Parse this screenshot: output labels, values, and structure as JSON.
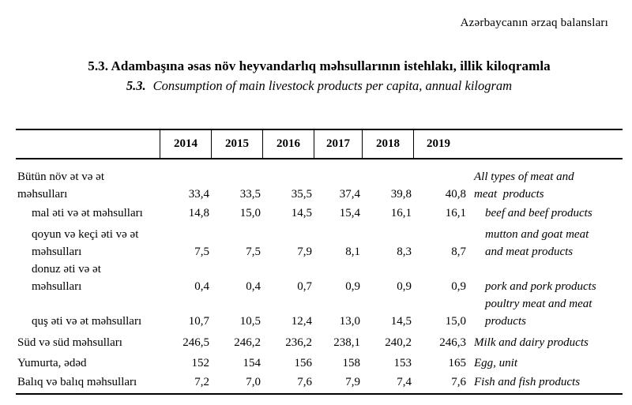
{
  "page": {
    "header_right": "Azərbaycanın ərzaq balansları",
    "title_az": "5.3. Adambaşına əsas növ heyvandarlıq məhsullarının istehlakı, illik kiloqramla",
    "subtitle_number": "5.3.",
    "subtitle_text": "Consumption of main livestock products per capita, annual kilogram"
  },
  "table": {
    "years": [
      "2014",
      "2015",
      "2016",
      "2017",
      "2018",
      "2019"
    ],
    "rows": [
      {
        "label_az_lines": [
          "Bütün növ ət və ət",
          "məhsulları"
        ],
        "values": [
          "33,4",
          "33,5",
          "35,5",
          "37,4",
          "39,8",
          "40,8"
        ],
        "label_en_lines": [
          "All types of meat and",
          "meat  products"
        ],
        "indent": false,
        "gap": "none"
      },
      {
        "label_az_lines": [
          "mal əti və ət məhsulları"
        ],
        "values": [
          "14,8",
          "15,0",
          "14,5",
          "15,4",
          "16,1",
          "16,1"
        ],
        "label_en_lines": [
          "beef and beef products"
        ],
        "indent": true,
        "gap": "small"
      },
      {
        "label_az_lines": [
          "qoyun və keçi əti və ət",
          "məhsulları"
        ],
        "values": [
          "7,5",
          "7,5",
          "7,9",
          "8,1",
          "8,3",
          "8,7"
        ],
        "label_en_lines": [
          "mutton and goat meat",
          "and meat products"
        ],
        "indent": true,
        "gap": "medium"
      },
      {
        "label_az_lines": [
          "donuz əti və ət",
          "məhsulları"
        ],
        "values": [
          "0,4",
          "0,4",
          "0,7",
          "0,9",
          "0,9",
          "0,9"
        ],
        "label_en_lines": [
          "pork and pork products"
        ],
        "indent": true,
        "gap": "none"
      },
      {
        "label_az_lines": [
          "quş əti və ət məhsulları"
        ],
        "values": [
          "10,7",
          "10,5",
          "12,4",
          "13,0",
          "14,5",
          "15,0"
        ],
        "label_en_lines": [
          "poultry meat and meat",
          "products"
        ],
        "indent": true,
        "gap": "none"
      },
      {
        "label_az_lines": [
          "Süd və süd məhsulları"
        ],
        "values": [
          "246,5",
          "246,2",
          "236,2",
          "238,1",
          "240,2",
          "246,3"
        ],
        "label_en_lines": [
          "Milk and dairy products"
        ],
        "indent": false,
        "gap": "medium"
      },
      {
        "label_az_lines": [
          "Yumurta, ədəd"
        ],
        "values": [
          "152",
          "154",
          "156",
          "158",
          "153",
          "165"
        ],
        "label_en_lines": [
          "Egg, unit"
        ],
        "indent": false,
        "gap": "mid-small"
      },
      {
        "label_az_lines": [
          "Balıq və balıq məhsulları"
        ],
        "values": [
          "7,2",
          "7,0",
          "7,6",
          "7,9",
          "7,4",
          "7,6"
        ],
        "label_en_lines": [
          "Fish and fish products"
        ],
        "indent": false,
        "gap": "small"
      }
    ]
  }
}
